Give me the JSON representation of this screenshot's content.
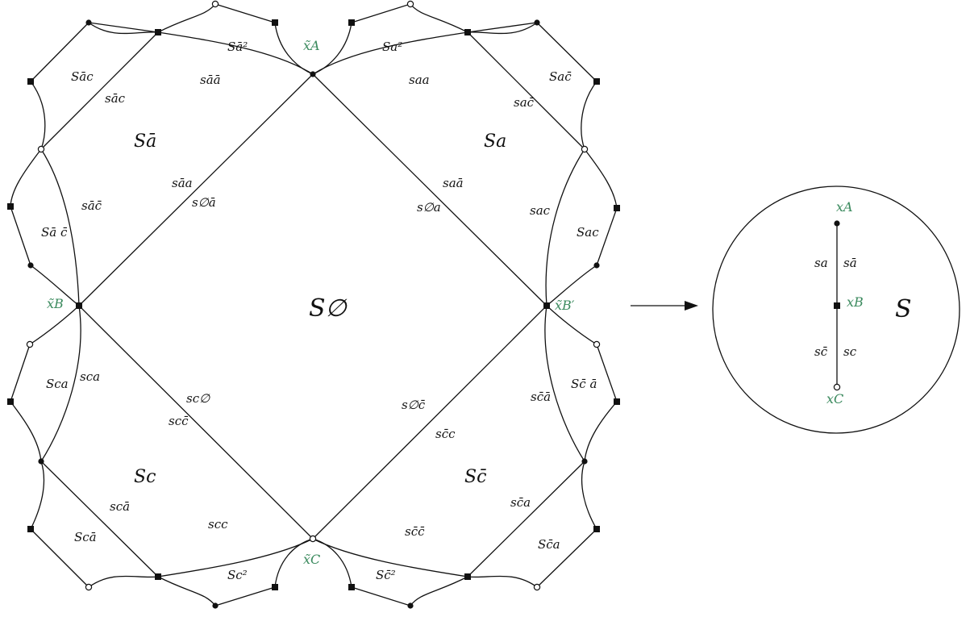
{
  "colors": {
    "line": "#111111",
    "node_label": "#3b8a5e"
  },
  "left_figure": {
    "center_label": "S∅",
    "nodes": {
      "xA": "x̃A",
      "xB": "x̃B",
      "xBp": "x̃B′",
      "xC": "x̃C"
    },
    "regions": {
      "S_abar": "Sā",
      "S_a": "Sa",
      "S_c": "Sc",
      "S_cbar": "Sc̄",
      "S_abar2": "Sā²",
      "S_a2": "Sa²",
      "S_c2": "Sc²",
      "S_cbar2": "Sc̄²",
      "S_abar_c": "Sāc",
      "S_a_cbar": "Sac̄",
      "S_abar_cbar": "Sā c̄",
      "S_ac": "Sac",
      "S_ca": "Sca",
      "S_cbar_abar": "Sc̄ ā",
      "S_c_abar": "Scā",
      "S_cbar_a": "Sc̄a"
    },
    "edges": {
      "s_abar_abar": "sāā",
      "s_a_a": "saa",
      "s_abar_c": "sāc",
      "s_a_cbar": "sac̄",
      "s_abar_a": "sāa",
      "s_empty_abar": "s∅ā",
      "s_a_abar": "saā",
      "s_empty_a": "s∅a",
      "s_abar_cbar": "sāc̄",
      "s_a_c": "sac",
      "s_c_a": "sca",
      "s_cbar_abar": "sc̄ā",
      "s_c_empty": "sc∅",
      "s_c_cbar": "scc̄",
      "s_empty_cbar": "s∅c̄",
      "s_cbar_c": "sc̄c",
      "s_c_abar": "scā",
      "s_cbar_a": "sc̄a",
      "s_c_c": "scc",
      "s_cbar_cbar": "sc̄c̄"
    }
  },
  "right_figure": {
    "space_label": "S",
    "nodes": {
      "xA": "xA",
      "xB": "xB",
      "xC": "xC"
    },
    "edges": {
      "s_a": "sa",
      "s_abar": "sā",
      "s_cbar": "sc̄",
      "s_c": "sc"
    }
  },
  "arrow_icon": "right-arrow-icon"
}
